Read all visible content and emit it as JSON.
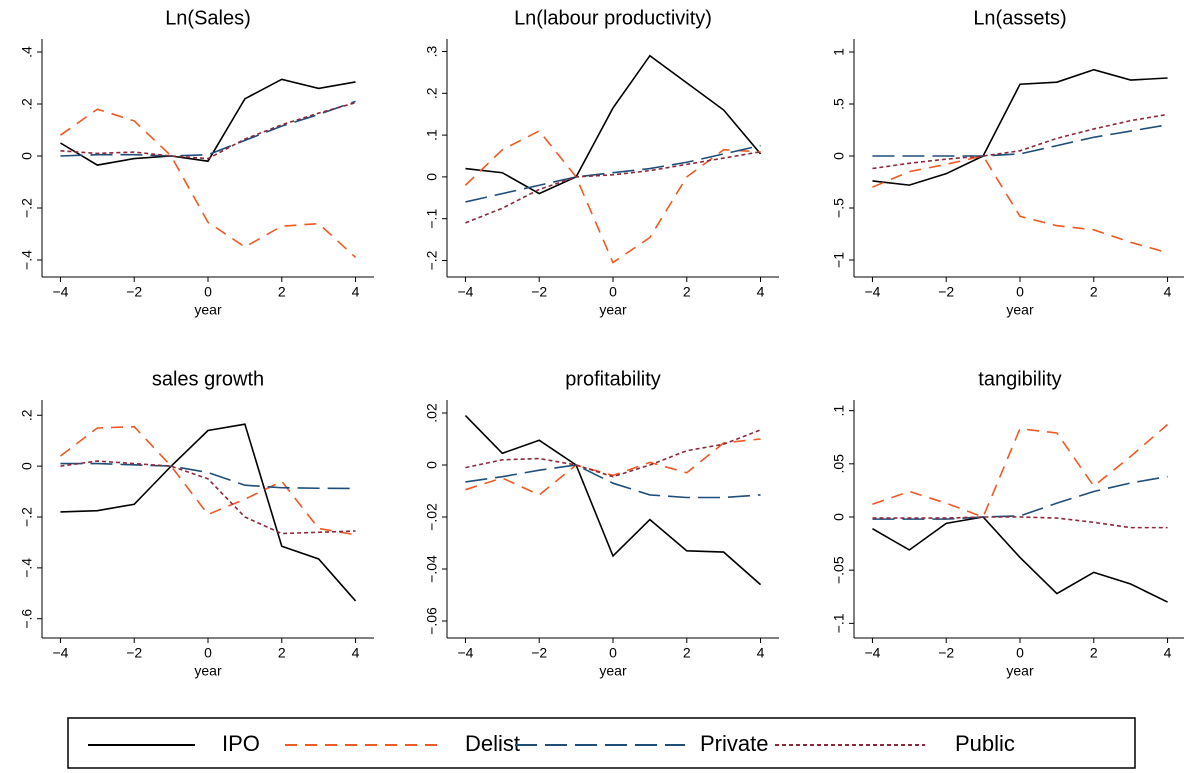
{
  "chart_data": [
    {
      "type": "line",
      "title": "Ln(Sales)",
      "xlabel": "year",
      "x": [
        -4,
        -3,
        -2,
        -1,
        0,
        1,
        2,
        3,
        4
      ],
      "xlim": [
        -4.5,
        4.5
      ],
      "xticks": [
        {
          "value": -4,
          "label": "−4"
        },
        {
          "value": -2,
          "label": "−2"
        },
        0,
        2,
        4
      ],
      "ylim": [
        -0.45,
        0.45
      ],
      "yticks": [
        {
          "value": 0.4,
          "label": ".4"
        },
        {
          "value": 0.2,
          "label": ".2"
        },
        0,
        {
          "value": -0.2,
          "label": "−.2"
        },
        {
          "value": -0.4,
          "label": "−.4"
        }
      ],
      "series": [
        {
          "name": "IPO",
          "color": "#000000",
          "linestyle": "solid",
          "values": [
            0.05,
            -0.035,
            -0.01,
            0,
            -0.02,
            0.22,
            0.295,
            0.26,
            0.285
          ]
        },
        {
          "name": "Delist",
          "color": "#ef5a24",
          "linestyle": "dashed",
          "values": [
            0.08,
            0.18,
            0.135,
            0,
            -0.255,
            -0.35,
            -0.27,
            -0.26,
            -0.39
          ]
        },
        {
          "name": "Private",
          "color": "#1f4e79",
          "linestyle": "longdash",
          "values": [
            0,
            0.005,
            0.005,
            0,
            0.005,
            0.06,
            0.115,
            0.16,
            0.21
          ]
        },
        {
          "name": "Public",
          "color": "#8b2a3a",
          "linestyle": "dotted",
          "values": [
            0.02,
            0.01,
            0.015,
            0,
            -0.01,
            0.065,
            0.12,
            0.165,
            0.205
          ]
        }
      ]
    },
    {
      "type": "line",
      "title": "Ln(labour productivity)",
      "xlabel": "year",
      "x": [
        -4,
        -3,
        -2,
        -1,
        0,
        1,
        2,
        3,
        4
      ],
      "xlim": [
        -4.5,
        4.5
      ],
      "xticks": [
        {
          "value": -4,
          "label": "−4"
        },
        {
          "value": -2,
          "label": "−2"
        },
        0,
        2,
        4
      ],
      "ylim": [
        -0.23,
        0.33
      ],
      "yticks": [
        {
          "value": 0.3,
          "label": ".3"
        },
        {
          "value": 0.2,
          "label": ".2"
        },
        {
          "value": 0.1,
          "label": ".1"
        },
        0,
        {
          "value": -0.1,
          "label": "−.1"
        },
        {
          "value": -0.2,
          "label": "−.2"
        }
      ],
      "series": [
        {
          "name": "IPO",
          "color": "#000000",
          "linestyle": "solid",
          "values": [
            0.02,
            0.01,
            -0.04,
            0,
            0.165,
            0.29,
            0.225,
            0.16,
            0.055
          ]
        },
        {
          "name": "Delist",
          "color": "#ef5a24",
          "linestyle": "dashed",
          "values": [
            -0.02,
            0.065,
            0.11,
            0,
            -0.205,
            -0.145,
            0,
            0.065,
            0.06
          ]
        },
        {
          "name": "Private",
          "color": "#1f4e79",
          "linestyle": "longdash",
          "values": [
            -0.06,
            -0.04,
            -0.02,
            0,
            0.01,
            0.02,
            0.035,
            0.055,
            0.075
          ]
        },
        {
          "name": "Public",
          "color": "#8b2a3a",
          "linestyle": "dotted",
          "values": [
            -0.11,
            -0.075,
            -0.03,
            0,
            0.005,
            0.015,
            0.03,
            0.045,
            0.06
          ]
        }
      ]
    },
    {
      "type": "line",
      "title": "Ln(assets)",
      "xlabel": "year",
      "x": [
        -4,
        -3,
        -2,
        -1,
        0,
        1,
        2,
        3,
        4
      ],
      "xlim": [
        -4.5,
        4.5
      ],
      "xticks": [
        {
          "value": -4,
          "label": "−4"
        },
        {
          "value": -2,
          "label": "−2"
        },
        0,
        2,
        4
      ],
      "ylim": [
        -1.125,
        1.125
      ],
      "yticks": [
        1,
        {
          "value": 0.5,
          "label": ".5"
        },
        0,
        {
          "value": -0.5,
          "label": "−.5"
        },
        {
          "value": -1,
          "label": "−1"
        }
      ],
      "series": [
        {
          "name": "IPO",
          "color": "#000000",
          "linestyle": "solid",
          "values": [
            -0.24,
            -0.28,
            -0.17,
            0,
            0.69,
            0.71,
            0.83,
            0.73,
            0.75
          ]
        },
        {
          "name": "Delist",
          "color": "#ef5a24",
          "linestyle": "dashed",
          "values": [
            -0.3,
            -0.15,
            -0.08,
            0,
            -0.58,
            -0.67,
            -0.71,
            -0.83,
            -0.93
          ]
        },
        {
          "name": "Private",
          "color": "#1f4e79",
          "linestyle": "longdash",
          "values": [
            0,
            0,
            0,
            0,
            0.02,
            0.1,
            0.18,
            0.24,
            0.3
          ]
        },
        {
          "name": "Public",
          "color": "#8b2a3a",
          "linestyle": "dotted",
          "values": [
            -0.12,
            -0.07,
            -0.03,
            0,
            0.05,
            0.17,
            0.26,
            0.34,
            0.4
          ]
        }
      ]
    },
    {
      "type": "line",
      "title": "sales growth",
      "xlabel": "year",
      "x": [
        -4,
        -3,
        -2,
        -1,
        0,
        1,
        2,
        3,
        4
      ],
      "xlim": [
        -4.5,
        4.5
      ],
      "xticks": [
        {
          "value": -4,
          "label": "−4"
        },
        {
          "value": -2,
          "label": "−2"
        },
        0,
        2,
        4
      ],
      "ylim": [
        -0.66,
        0.26
      ],
      "yticks": [
        {
          "value": 0.2,
          "label": ".2"
        },
        0,
        {
          "value": -0.2,
          "label": "−.2"
        },
        {
          "value": -0.4,
          "label": "−.4"
        },
        {
          "value": -0.6,
          "label": "−.6"
        }
      ],
      "series": [
        {
          "name": "IPO",
          "color": "#000000",
          "linestyle": "solid",
          "values": [
            -0.18,
            -0.175,
            -0.15,
            0,
            0.14,
            0.165,
            -0.315,
            -0.365,
            -0.53
          ]
        },
        {
          "name": "Delist",
          "color": "#ef5a24",
          "linestyle": "dashed",
          "values": [
            0.04,
            0.15,
            0.155,
            0,
            -0.19,
            -0.13,
            -0.06,
            -0.245,
            -0.27
          ]
        },
        {
          "name": "Private",
          "color": "#1f4e79",
          "linestyle": "longdash",
          "values": [
            0.01,
            0.01,
            0.005,
            0,
            -0.025,
            -0.075,
            -0.085,
            -0.087,
            -0.088
          ]
        },
        {
          "name": "Public",
          "color": "#8b2a3a",
          "linestyle": "dotted",
          "values": [
            0,
            0.02,
            0.01,
            0,
            -0.05,
            -0.2,
            -0.265,
            -0.26,
            -0.255
          ]
        }
      ]
    },
    {
      "type": "line",
      "title": "profitability",
      "xlabel": "year",
      "x": [
        -4,
        -3,
        -2,
        -1,
        0,
        1,
        2,
        3,
        4
      ],
      "xlim": [
        -4.5,
        4.5
      ],
      "xticks": [
        {
          "value": -4,
          "label": "−4"
        },
        {
          "value": -2,
          "label": "−2"
        },
        0,
        2,
        4
      ],
      "ylim": [
        -0.065,
        0.025
      ],
      "yticks": [
        {
          "value": 0.02,
          "label": ".02"
        },
        0,
        {
          "value": -0.02,
          "label": "−.02"
        },
        {
          "value": -0.04,
          "label": "−.04"
        },
        {
          "value": -0.06,
          "label": "−.06"
        }
      ],
      "series": [
        {
          "name": "IPO",
          "color": "#000000",
          "linestyle": "solid",
          "values": [
            0.019,
            0.0045,
            0.0095,
            0,
            -0.035,
            -0.021,
            -0.033,
            -0.0335,
            -0.046
          ]
        },
        {
          "name": "Delist",
          "color": "#ef5a24",
          "linestyle": "dashed",
          "values": [
            -0.0095,
            -0.005,
            -0.0115,
            0,
            -0.004,
            0.001,
            -0.003,
            0.0085,
            0.01
          ]
        },
        {
          "name": "Private",
          "color": "#1f4e79",
          "linestyle": "longdash",
          "values": [
            -0.0065,
            -0.0045,
            -0.002,
            0,
            -0.007,
            -0.0115,
            -0.0125,
            -0.0125,
            -0.0115
          ]
        },
        {
          "name": "Public",
          "color": "#8b2a3a",
          "linestyle": "dotted",
          "values": [
            -0.001,
            0.002,
            0.0025,
            0,
            -0.0045,
            0,
            0.0055,
            0.008,
            0.0135
          ]
        }
      ]
    },
    {
      "type": "line",
      "title": "tangibility",
      "xlabel": "year",
      "x": [
        -4,
        -3,
        -2,
        -1,
        0,
        1,
        2,
        3,
        4
      ],
      "xlim": [
        -4.5,
        4.5
      ],
      "xticks": [
        {
          "value": -4,
          "label": "−4"
        },
        {
          "value": -2,
          "label": "−2"
        },
        0,
        2,
        4
      ],
      "ylim": [
        -0.11,
        0.11
      ],
      "yticks": [
        {
          "value": 0.1,
          "label": ".1"
        },
        {
          "value": 0.05,
          "label": ".05"
        },
        0,
        {
          "value": -0.05,
          "label": "−.05"
        },
        {
          "value": -0.1,
          "label": "−.1"
        }
      ],
      "series": [
        {
          "name": "IPO",
          "color": "#000000",
          "linestyle": "solid",
          "values": [
            -0.011,
            -0.031,
            -0.006,
            0,
            -0.038,
            -0.072,
            -0.052,
            -0.063,
            -0.08
          ]
        },
        {
          "name": "Delist",
          "color": "#ef5a24",
          "linestyle": "dashed",
          "values": [
            0.012,
            0.024,
            0.013,
            0,
            0.083,
            0.079,
            0.029,
            0.057,
            0.087
          ]
        },
        {
          "name": "Private",
          "color": "#1f4e79",
          "linestyle": "longdash",
          "values": [
            -0.002,
            -0.002,
            -0.002,
            0,
            0.001,
            0.013,
            0.024,
            0.032,
            0.038
          ]
        },
        {
          "name": "Public",
          "color": "#8b2a3a",
          "linestyle": "dotted",
          "values": [
            -0.001,
            -0.001,
            -0.001,
            0,
            0,
            -0.001,
            -0.005,
            -0.01,
            -0.01
          ]
        }
      ]
    }
  ]
}
